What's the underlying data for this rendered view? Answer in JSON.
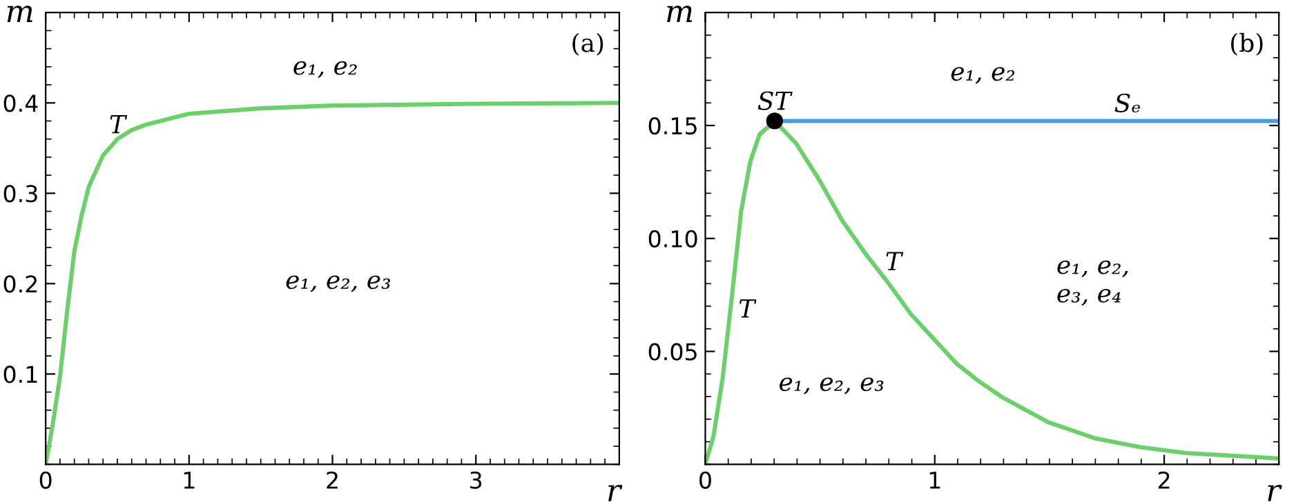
{
  "chart_data": [
    {
      "type": "line",
      "xlabel": "r",
      "ylabel": "m",
      "xlim": [
        0,
        4
      ],
      "ylim": [
        0,
        0.5
      ],
      "xticks": [
        0,
        1,
        2,
        3
      ],
      "yticks": [
        0.1,
        0.2,
        0.3,
        0.4
      ],
      "grid": false,
      "legend": false,
      "marker": "none",
      "line_style": "solid",
      "series": [
        {
          "color": "#6dcf6b",
          "x": [
            0,
            0.05,
            0.1,
            0.15,
            0.2,
            0.25,
            0.3,
            0.4,
            0.5,
            0.6,
            0.7,
            0.8,
            1.0,
            1.5,
            2.0,
            3.0,
            4.0
          ],
          "values": [
            0,
            0.045,
            0.097,
            0.17,
            0.236,
            0.275,
            0.307,
            0.342,
            0.36,
            0.37,
            0.376,
            0.38,
            0.388,
            0.394,
            0.397,
            0.399,
            0.4
          ]
        }
      ],
      "annotations": [
        "(a)",
        "T",
        "e₁, e₂",
        "e₁, e₂, e₃"
      ]
    },
    {
      "type": "line",
      "xlabel": "r",
      "ylabel": "m",
      "xlim": [
        0,
        2.5
      ],
      "ylim": [
        0,
        0.2
      ],
      "xticks": [
        0,
        1,
        2
      ],
      "yticks": [
        0.05,
        {
          "value": 0.1,
          "label": "0.10"
        },
        0.15
      ],
      "grid": false,
      "legend": false,
      "marker": "none",
      "line_style": "solid",
      "series": [
        {
          "color": "#6dcf6b",
          "x": [
            0,
            0.036,
            0.076,
            0.116,
            0.156,
            0.196,
            0.236,
            0.302,
            0.396,
            0.496,
            0.596,
            0.696,
            0.796,
            0.896,
            0.996,
            1.096,
            1.196,
            1.296,
            1.496,
            1.696,
            1.896,
            2.096,
            2.5
          ],
          "values": [
            0,
            0.0126,
            0.0385,
            0.0745,
            0.112,
            0.134,
            0.146,
            0.152,
            0.142,
            0.126,
            0.108,
            0.0935,
            0.0805,
            0.0665,
            0.0555,
            0.0445,
            0.0365,
            0.0296,
            0.0186,
            0.0116,
            0.0076,
            0.005,
            0.0026
          ]
        },
        {
          "color": "#4a9be0",
          "x": [
            0.302,
            2.5
          ],
          "values": [
            0.152,
            0.152
          ]
        },
        {
          "type": "scatter",
          "color": "#000000",
          "marker": "circle",
          "x": [
            0.302
          ],
          "values": [
            0.152
          ]
        }
      ],
      "annotations": [
        "(b)",
        "ST",
        "Sₑ",
        "e₁, e₂",
        "T",
        "T",
        "e₁, e₂,",
        "e₃, e₄",
        "e₁, e₂, e₃"
      ]
    }
  ]
}
